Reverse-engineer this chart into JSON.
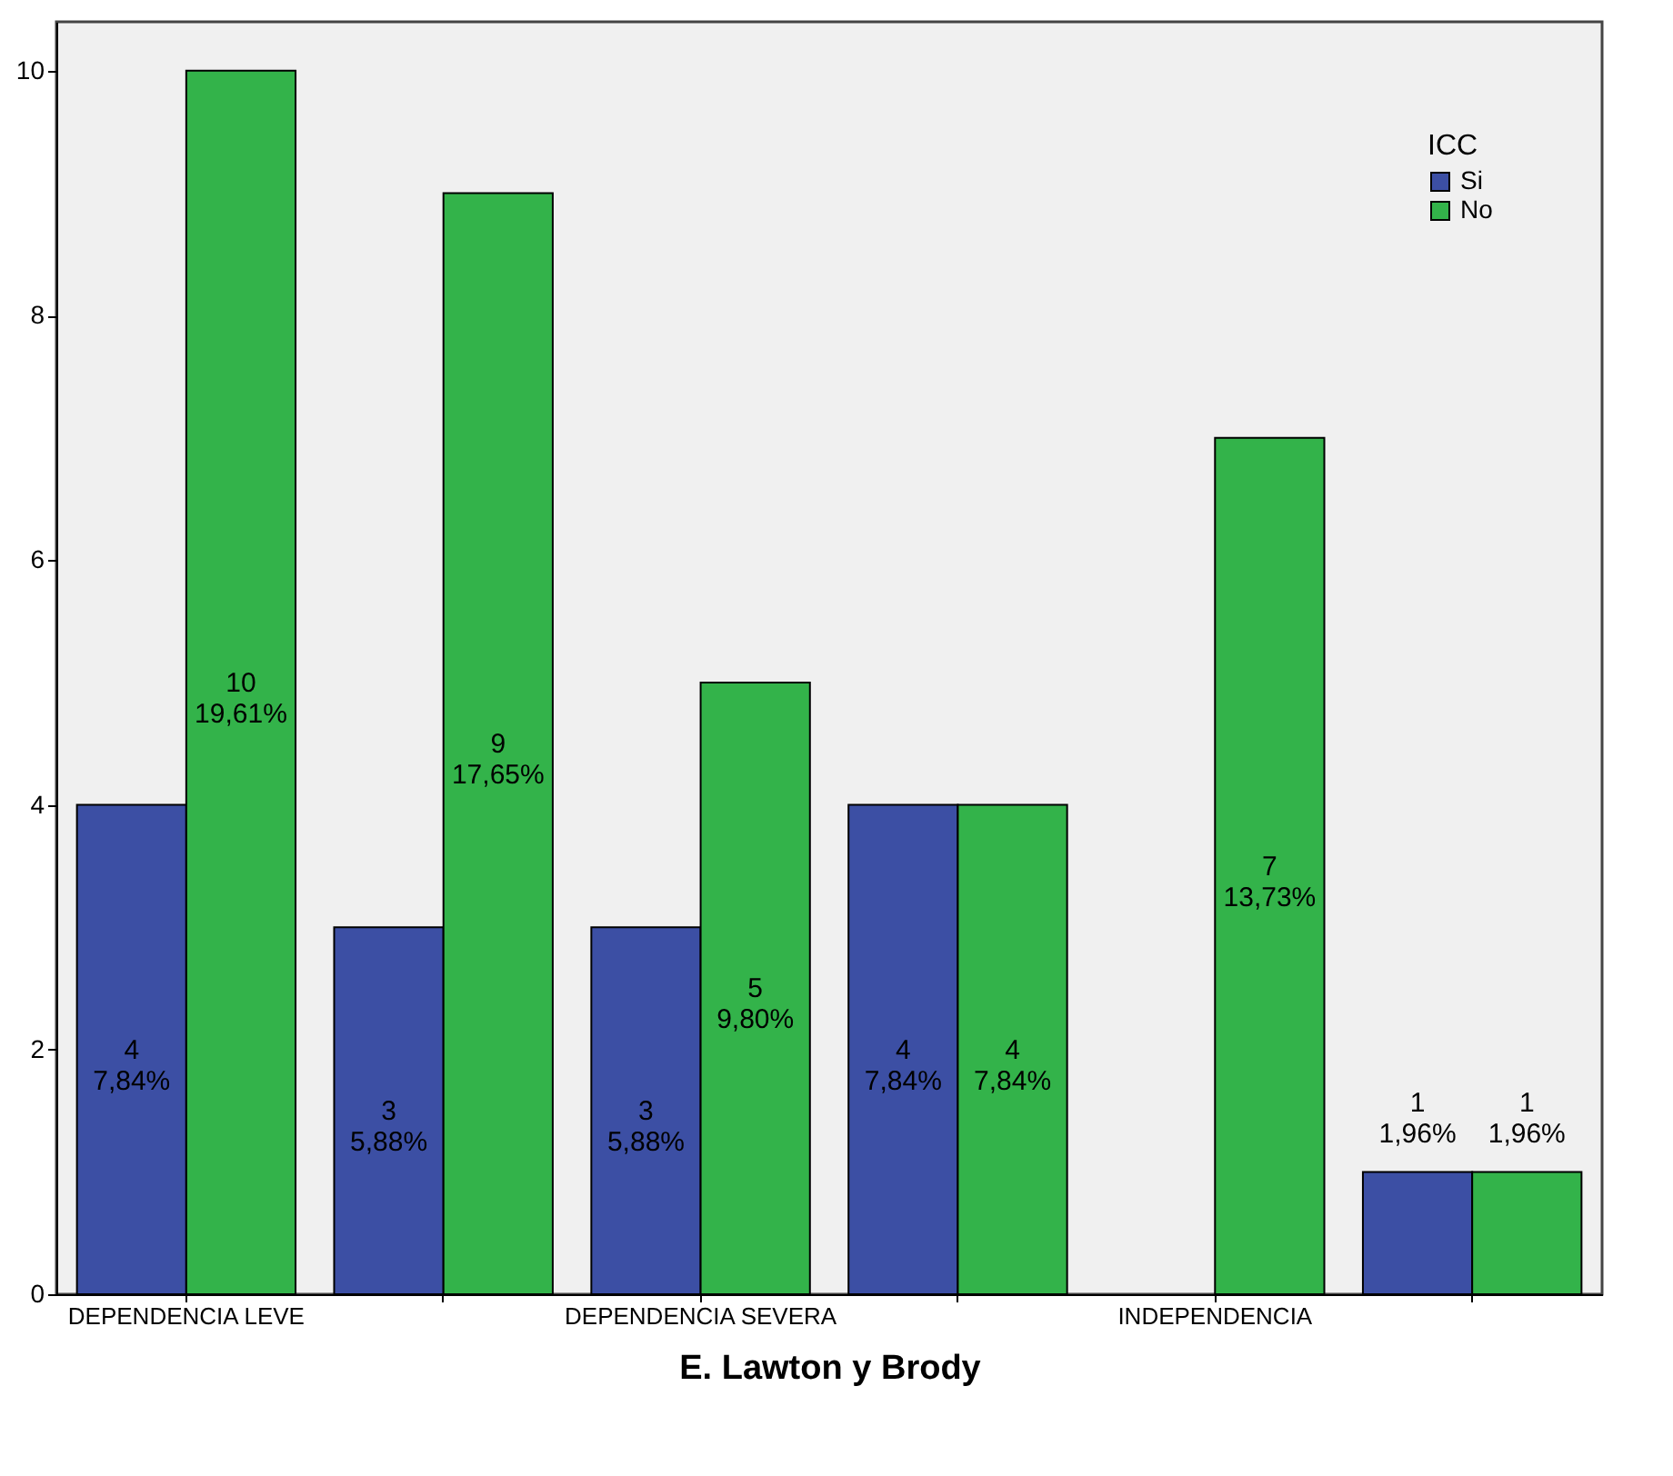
{
  "chart_data": {
    "type": "bar",
    "xlabel": "E. Lawton y Brody",
    "legend_title": "ICC",
    "legend": "top right",
    "grid": false,
    "categories": [
      "DEPENDENCIA LEVE",
      null,
      "DEPENDENCIA SEVERA",
      null,
      "INDEPENDENCIA",
      null
    ],
    "ylim": [
      0,
      10.4
    ],
    "yticks": [
      0,
      2,
      4,
      6,
      8,
      10
    ],
    "series": [
      {
        "name": "Si",
        "color": "#3c4fa4",
        "values": [
          4,
          3,
          3,
          4,
          null,
          1
        ],
        "value_labels": [
          "4\n7,84%",
          "3\n5,88%",
          "3\n5,88%",
          "4\n7,84%",
          null,
          "1\n1,96%"
        ]
      },
      {
        "name": "No",
        "color": "#33b34a",
        "values": [
          10,
          9,
          5,
          4,
          7,
          1
        ],
        "value_labels": [
          "10\n19,61%",
          "9\n17,65%",
          "5\n9,80%",
          "4\n7,84%",
          "7\n13,73%",
          "1\n1,96%"
        ]
      }
    ]
  }
}
